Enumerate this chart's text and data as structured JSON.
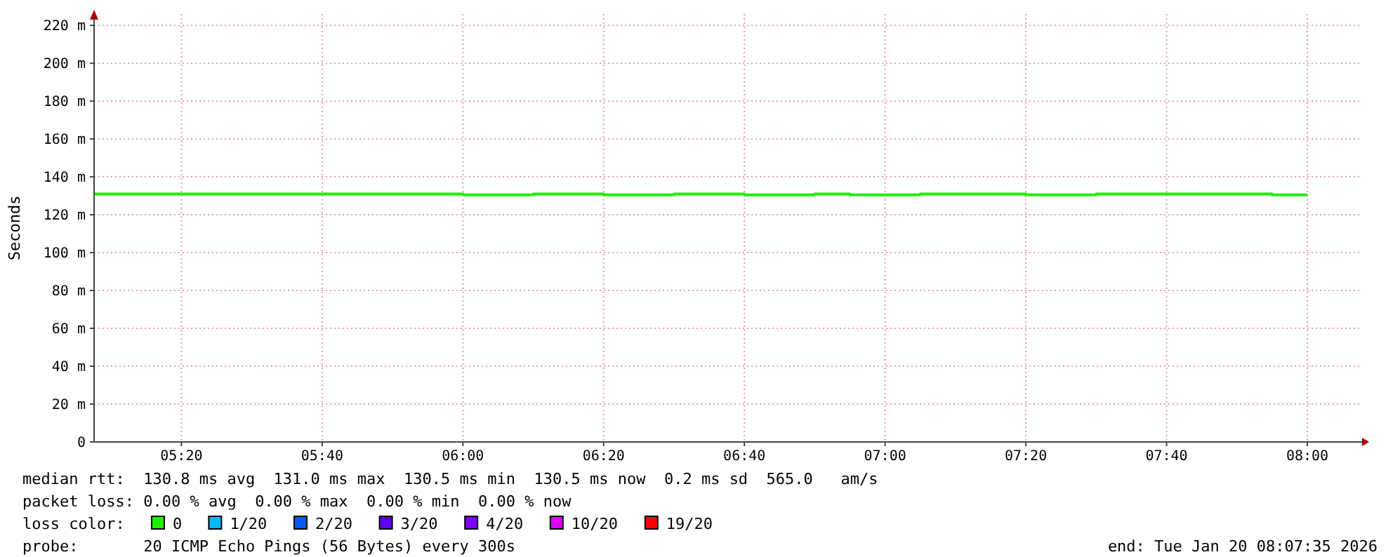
{
  "chart_data": {
    "type": "step",
    "ylabel": "Seconds",
    "x": [
      5.1264,
      6.0,
      6.1667,
      6.3333,
      6.5,
      6.6667,
      6.8333,
      6.9167,
      7.0833,
      7.3333,
      7.5,
      7.9167,
      8.0
    ],
    "series": [
      {
        "name": "0",
        "color": "#20f000",
        "values": [
          131,
          130.5,
          131,
          130.5,
          131,
          130.5,
          131,
          130.5,
          131,
          130.5,
          131,
          130.5,
          130.5
        ]
      },
      {
        "name": "1/20",
        "color": "#00b8ff",
        "values": [
          null,
          null,
          null,
          null,
          null,
          null,
          null,
          null,
          null,
          null,
          null,
          null,
          null
        ]
      },
      {
        "name": "2/20",
        "color": "#0059ff",
        "values": [
          null,
          null,
          null,
          null,
          null,
          null,
          null,
          null,
          null,
          null,
          null,
          null,
          null
        ]
      },
      {
        "name": "3/20",
        "color": "#5e00ff",
        "values": [
          null,
          null,
          null,
          null,
          null,
          null,
          null,
          null,
          null,
          null,
          null,
          null,
          null
        ]
      },
      {
        "name": "4/20",
        "color": "#7e00ff",
        "values": [
          null,
          null,
          null,
          null,
          null,
          null,
          null,
          null,
          null,
          null,
          null,
          null,
          null
        ]
      },
      {
        "name": "10/20",
        "color": "#dd00ff",
        "values": [
          null,
          null,
          null,
          null,
          null,
          null,
          null,
          null,
          null,
          null,
          null,
          null,
          null
        ]
      },
      {
        "name": "19/20",
        "color": "#ff0000",
        "values": [
          null,
          null,
          null,
          null,
          null,
          null,
          null,
          null,
          null,
          null,
          null,
          null,
          null
        ]
      }
    ],
    "legend_title": "loss color:",
    "legend": "bottom left",
    "xlim": [
      5.1264,
      8.1264
    ],
    "xticks": [
      {
        "value": 5.3333,
        "label": "05:20"
      },
      {
        "value": 5.6667,
        "label": "05:40"
      },
      {
        "value": 6.0,
        "label": "06:00"
      },
      {
        "value": 6.3333,
        "label": "06:20"
      },
      {
        "value": 6.6667,
        "label": "06:40"
      },
      {
        "value": 7.0,
        "label": "07:00"
      },
      {
        "value": 7.3333,
        "label": "07:20"
      },
      {
        "value": 7.6667,
        "label": "07:40"
      },
      {
        "value": 8.0,
        "label": "08:00"
      }
    ],
    "ylim": [
      0,
      226
    ],
    "yticks": [
      0,
      {
        "value": 20,
        "label": "20 m"
      },
      {
        "value": 40,
        "label": "40 m"
      },
      {
        "value": 60,
        "label": "60 m"
      },
      {
        "value": 80,
        "label": "80 m"
      },
      {
        "value": 100,
        "label": "100 m"
      },
      {
        "value": 120,
        "label": "120 m"
      },
      {
        "value": 140,
        "label": "140 m"
      },
      {
        "value": 160,
        "label": "160 m"
      },
      {
        "value": 180,
        "label": "180 m"
      },
      {
        "value": 200,
        "label": "200 m"
      },
      {
        "value": 220,
        "label": "220 m"
      }
    ],
    "grid": true,
    "line_style": "solid",
    "marker": "none",
    "annotations": [
      "median rtt:  130.8 ms avg  131.0 ms max  130.5 ms min  130.5 ms now  0.2 ms sd  565.0   am/s",
      "packet loss: 0.00 % avg  0.00 % max  0.00 % min  0.00 % now",
      "probe:       20 ICMP Echo Pings (56 Bytes) every 300s",
      "end: Tue Jan 20 08:07:35 2026"
    ]
  }
}
